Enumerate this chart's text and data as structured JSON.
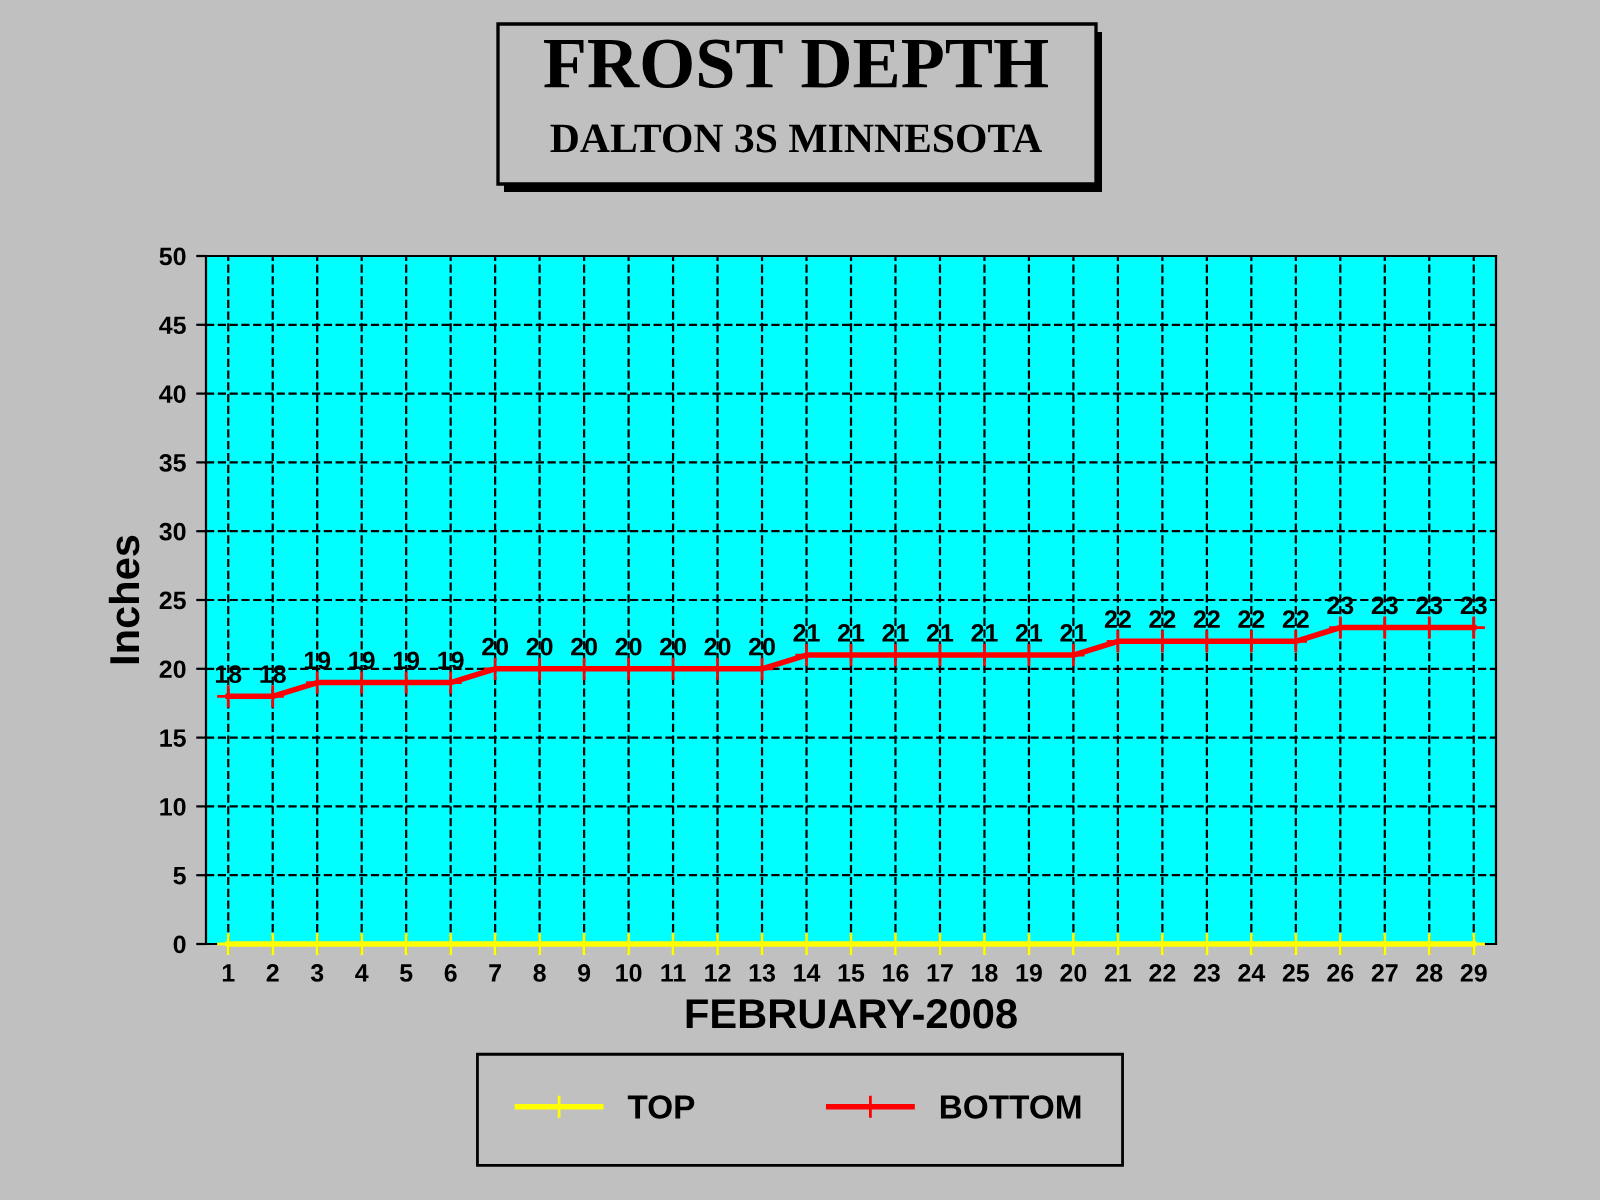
{
  "chart_data": {
    "type": "line",
    "title": "FROST DEPTH",
    "subtitle": "DALTON 3S MINNESOTA",
    "xlabel": "FEBRUARY-2008",
    "ylabel": "Inches",
    "categories": [
      "1",
      "2",
      "3",
      "4",
      "5",
      "6",
      "7",
      "8",
      "9",
      "10",
      "11",
      "12",
      "13",
      "14",
      "15",
      "16",
      "17",
      "18",
      "19",
      "20",
      "21",
      "22",
      "23",
      "24",
      "25",
      "26",
      "27",
      "28",
      "29"
    ],
    "series": [
      {
        "name": "TOP",
        "color": "#ffff00",
        "values": [
          0,
          0,
          0,
          0,
          0,
          0,
          0,
          0,
          0,
          0,
          0,
          0,
          0,
          0,
          0,
          0,
          0,
          0,
          0,
          0,
          0,
          0,
          0,
          0,
          0,
          0,
          0,
          0,
          0
        ]
      },
      {
        "name": "BOTTOM",
        "color": "#ff0000",
        "values": [
          18,
          18,
          19,
          19,
          19,
          19,
          20,
          20,
          20,
          20,
          20,
          20,
          20,
          21,
          21,
          21,
          21,
          21,
          21,
          21,
          22,
          22,
          22,
          22,
          22,
          23,
          23,
          23,
          23
        ],
        "value_labels": [
          "18",
          "18",
          "19",
          "19",
          "19",
          "19",
          "20",
          "20",
          "20",
          "20",
          "20",
          "20",
          "20",
          "21",
          "21",
          "21",
          "21",
          "21",
          "21",
          "21",
          "22",
          "22",
          "22",
          "22",
          "22",
          "23",
          "23",
          "23",
          "23"
        ]
      }
    ],
    "ylim": [
      0,
      50
    ],
    "yticks": [
      0,
      5,
      10,
      15,
      20,
      25,
      30,
      35,
      40,
      45,
      50
    ],
    "grid": true,
    "legend": "bottom",
    "marker": "cross",
    "line_style": "solid"
  }
}
